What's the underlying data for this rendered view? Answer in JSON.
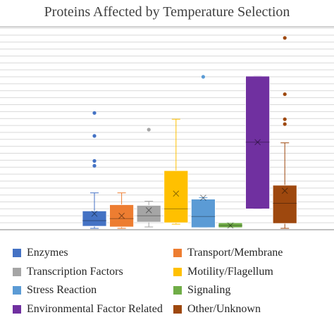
{
  "chart_data": {
    "type": "box",
    "title": "Proteins Affected by Temperature Selection",
    "xlabel": "",
    "ylabel": "",
    "ylim": [
      0,
      29
    ],
    "grid": true,
    "legend_position": "bottom",
    "series": [
      {
        "name": "Enzymes",
        "color": "#4472C4",
        "min": 0.2,
        "q1": 0.5,
        "median": 1.3,
        "q3": 2.7,
        "max": 5.3,
        "mean": 2.3,
        "outliers": [
          9.2,
          9.9,
          13.5,
          16.8
        ]
      },
      {
        "name": "Transport/Membrane",
        "color": "#ED7D31",
        "min": 0.2,
        "q1": 0.4,
        "median": 1.6,
        "q3": 3.6,
        "max": 5.3,
        "mean": 2.0,
        "outliers": []
      },
      {
        "name": "Transcription Factors",
        "color": "#A5A5A5",
        "min": 0.4,
        "q1": 1.1,
        "median": 2.0,
        "q3": 3.5,
        "max": 4.1,
        "mean": 2.8,
        "outliers": [
          14.4
        ]
      },
      {
        "name": "Motility/Flagellum",
        "color": "#FFC000",
        "min": 0.8,
        "q1": 1.0,
        "median": 3.0,
        "q3": 8.5,
        "max": 15.9,
        "mean": 5.2,
        "outliers": []
      },
      {
        "name": "Stress Reaction",
        "color": "#5B9BD5",
        "min": 0.3,
        "q1": 0.3,
        "median": 1.9,
        "q3": 4.4,
        "max": 4.6,
        "mean": 4.6,
        "outliers": [
          22.0
        ]
      },
      {
        "name": "Signaling",
        "color": "#70AD47",
        "min": 0.3,
        "q1": 0.3,
        "median": 0.6,
        "q3": 1.0,
        "max": 1.0,
        "mean": 0.6,
        "outliers": []
      },
      {
        "name": "Environmental Factor Related",
        "color": "#7030A0",
        "min": 3.0,
        "q1": 3.0,
        "median": 12.6,
        "q3": 22.1,
        "max": 22.1,
        "mean": 12.6,
        "outliers": []
      },
      {
        "name": "Other/Unknown",
        "color": "#9E480E",
        "min": 0.2,
        "q1": 0.9,
        "median": 3.8,
        "q3": 6.4,
        "max": 12.5,
        "mean": 5.6,
        "outliers": [
          15.2,
          15.9,
          19.5,
          27.6
        ]
      }
    ]
  }
}
